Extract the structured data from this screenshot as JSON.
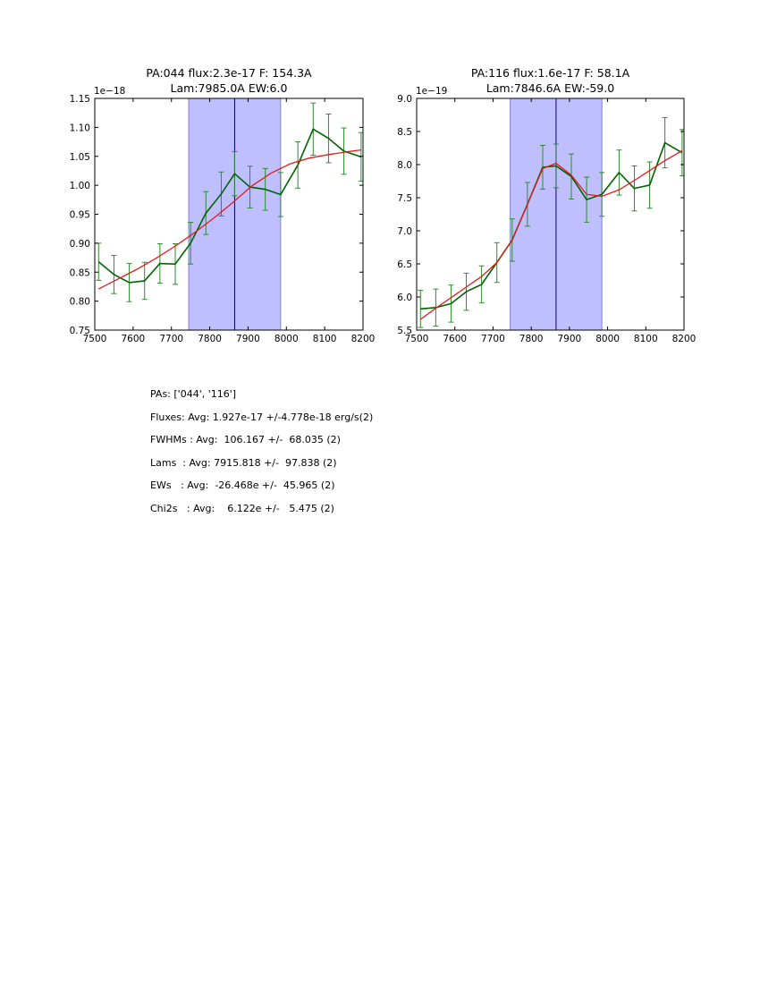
{
  "chart_data": [
    {
      "type": "line",
      "title": "PA:044 flux:2.3e-17 F: 154.3A",
      "subtitle": "Lam:7985.0A EW:6.0",
      "xlabel": "",
      "ylabel": "",
      "xlim": [
        7500,
        8200
      ],
      "ylim": [
        0.75,
        1.15
      ],
      "y_multiplier_label": "1e−18",
      "xticks": [
        "7500",
        "7600",
        "7700",
        "7800",
        "7900",
        "8000",
        "8100",
        "8200"
      ],
      "yticks": [
        "0.75",
        "0.80",
        "0.85",
        "0.90",
        "0.95",
        "1.00",
        "1.05",
        "1.10",
        "1.15"
      ],
      "shaded_region": [
        7745,
        7985
      ],
      "vertical_line": 7865,
      "colors": {
        "data": "#006400",
        "errorbar": "#2e8b2e",
        "fit": "#e31a1c",
        "band": "#bfbfff",
        "band_edge": "#6a6ad0",
        "vline": "#000080"
      },
      "series": [
        {
          "x": [
            7510,
            7550,
            7590,
            7630,
            7670,
            7710,
            7750,
            7790,
            7830,
            7865,
            7905,
            7945,
            7985,
            8030,
            8070,
            8110,
            8150,
            8195
          ],
          "values": [
            0.868,
            0.846,
            0.832,
            0.835,
            0.865,
            0.864,
            0.9,
            0.952,
            0.985,
            1.02,
            0.997,
            0.993,
            0.984,
            1.035,
            1.097,
            1.081,
            1.059,
            1.049
          ],
          "errors": [
            0.032,
            0.033,
            0.033,
            0.032,
            0.034,
            0.035,
            0.036,
            0.037,
            0.038,
            0.038,
            0.036,
            0.036,
            0.038,
            0.04,
            0.045,
            0.042,
            0.04,
            0.042
          ]
        },
        {
          "x": [
            7510,
            7560,
            7610,
            7660,
            7710,
            7760,
            7810,
            7860,
            7910,
            7960,
            8010,
            8060,
            8110,
            8160,
            8195
          ],
          "values": [
            0.821,
            0.838,
            0.855,
            0.874,
            0.895,
            0.918,
            0.943,
            0.97,
            0.999,
            1.021,
            1.037,
            1.047,
            1.053,
            1.058,
            1.061
          ]
        }
      ]
    },
    {
      "type": "line",
      "title": "PA:116 flux:1.6e-17 F: 58.1A",
      "subtitle": "Lam:7846.6A EW:-59.0",
      "xlabel": "",
      "ylabel": "",
      "xlim": [
        7500,
        8200
      ],
      "ylim": [
        5.5,
        9.0
      ],
      "y_multiplier_label": "1e−19",
      "xticks": [
        "7500",
        "7600",
        "7700",
        "7800",
        "7900",
        "8000",
        "8100",
        "8200"
      ],
      "yticks": [
        "5.5",
        "6.0",
        "6.5",
        "7.0",
        "7.5",
        "8.0",
        "8.5",
        "9.0"
      ],
      "shaded_region": [
        7745,
        7985
      ],
      "vertical_line": 7865,
      "colors": {
        "data": "#006400",
        "errorbar": "#2e8b2e",
        "fit": "#e31a1c",
        "band": "#bfbfff",
        "band_edge": "#6a6ad0",
        "vline": "#000080"
      },
      "series": [
        {
          "x": [
            7510,
            7550,
            7590,
            7630,
            7670,
            7710,
            7750,
            7790,
            7830,
            7865,
            7905,
            7945,
            7985,
            8030,
            8070,
            8110,
            8150,
            8195
          ],
          "values": [
            5.82,
            5.84,
            5.9,
            6.08,
            6.19,
            6.52,
            6.86,
            7.4,
            7.96,
            7.98,
            7.82,
            7.47,
            7.55,
            7.88,
            7.64,
            7.69,
            8.33,
            8.18
          ],
          "errors": [
            0.28,
            0.28,
            0.28,
            0.28,
            0.28,
            0.3,
            0.32,
            0.33,
            0.33,
            0.33,
            0.34,
            0.34,
            0.33,
            0.34,
            0.34,
            0.35,
            0.38,
            0.35
          ]
        },
        {
          "x": [
            7510,
            7550,
            7590,
            7630,
            7670,
            7710,
            7750,
            7790,
            7830,
            7865,
            7905,
            7945,
            7985,
            8030,
            8070,
            8110,
            8150,
            8195
          ],
          "values": [
            5.66,
            5.83,
            5.99,
            6.15,
            6.31,
            6.52,
            6.86,
            7.4,
            7.94,
            8.02,
            7.84,
            7.55,
            7.52,
            7.62,
            7.76,
            7.91,
            8.06,
            8.21
          ]
        }
      ]
    }
  ],
  "stats": {
    "pas": "PAs: ['044', '116']",
    "fluxes": "Fluxes: Avg: 1.927e-17 +/-4.778e-18 erg/s(2)",
    "fwhms": "FWHMs : Avg:  106.167 +/-  68.035 (2)",
    "lams": "Lams  : Avg: 7915.818 +/-  97.838 (2)",
    "ews": "EWs   : Avg:  -26.468e +/-  45.965 (2)",
    "chi2s": "Chi2s   : Avg:    6.122e +/-   5.475 (2)"
  }
}
